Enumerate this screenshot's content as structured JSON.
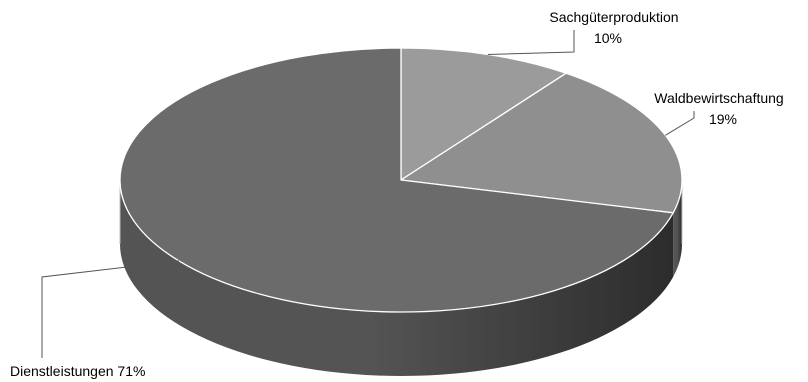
{
  "chart_data": {
    "type": "pie",
    "style": "3d",
    "slices": [
      {
        "label": "Sachgüterproduktion",
        "value": 10,
        "value_label": "10%",
        "color": "#9b9b9b"
      },
      {
        "label": "Waldbewirtschaftung",
        "value": 19,
        "value_label": "19%",
        "color": "#8f8f8f"
      },
      {
        "label": "Dienstleistungen",
        "value": 71,
        "value_label": "71%",
        "color": "#6b6b6b"
      }
    ],
    "slice_border_color": "#ffffff",
    "side_color_light": "#545454",
    "side_color_dark": "#2c2c2c",
    "leader_color": "#555555"
  }
}
